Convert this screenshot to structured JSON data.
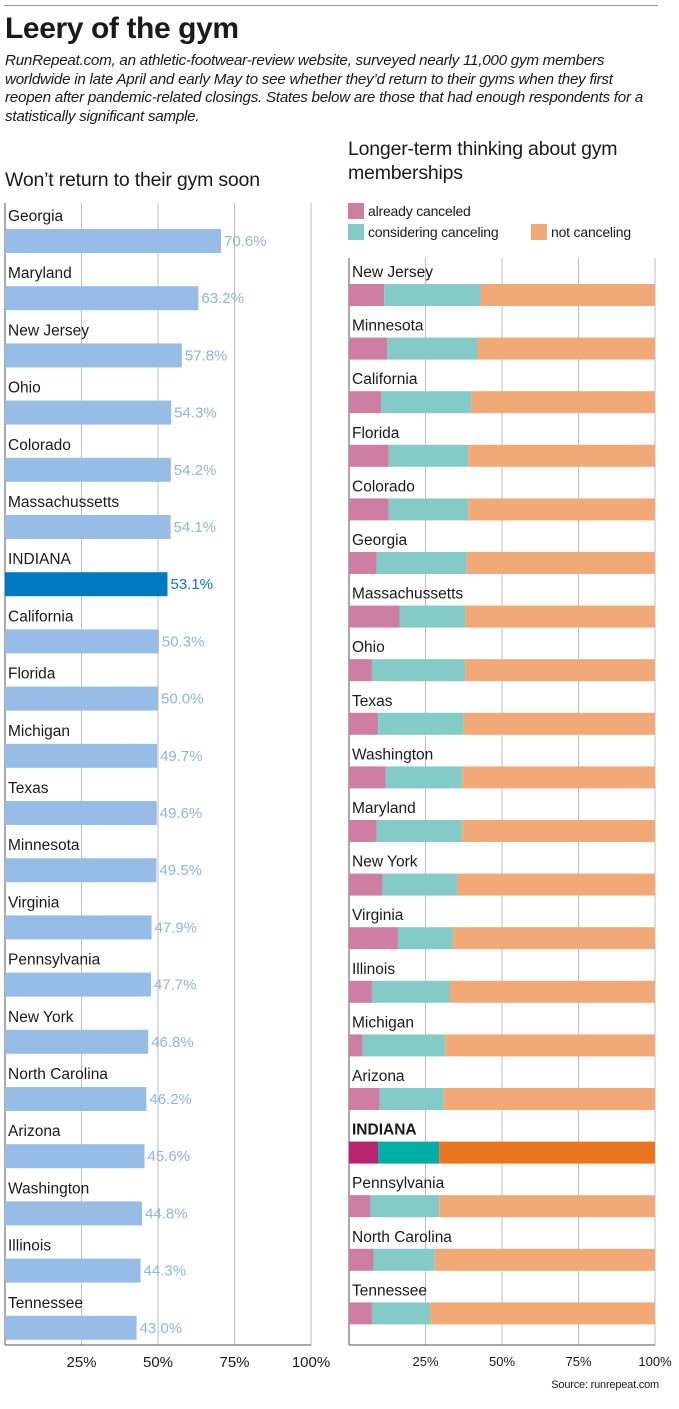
{
  "header": {
    "title": "Leery of the gym",
    "intro": "RunRepeat.com, an athletic-footwear-review website, surveyed nearly 11,000 gym members worldwide in late April and early May to see whether they’d return to their gyms when they first reopen after pandemic-related closings. States below are those that had enough respondents for a statistically significant sample."
  },
  "source": "Source: runrepeat.com",
  "colors": {
    "left_bar": "#97bde7",
    "left_bar_highlight": "#0079c1",
    "already_canceled": "#cf7ea3",
    "considering_canceling": "#84cbc7",
    "not_canceling": "#f2a978",
    "already_canceled_highlight": "#b8246f",
    "considering_canceling_highlight": "#00aea6",
    "not_canceling_highlight": "#e9761f"
  },
  "chart_data": [
    {
      "type": "bar",
      "orientation": "horizontal",
      "title": "Won’t return to their gym soon",
      "categories": [
        "Georgia",
        "Maryland",
        "New Jersey",
        "Ohio",
        "Colorado",
        "Massachussetts",
        "INDIANA",
        "California",
        "Florida",
        "Michigan",
        "Texas",
        "Minnesota",
        "Virginia",
        "Pennsylvania",
        "New York",
        "North Carolina",
        "Arizona",
        "Washington",
        "Illinois",
        "Tennessee"
      ],
      "values": [
        70.6,
        63.2,
        57.8,
        54.3,
        54.2,
        54.1,
        53.1,
        50.3,
        50.0,
        49.7,
        49.6,
        49.5,
        47.9,
        47.7,
        46.8,
        46.2,
        45.6,
        44.8,
        44.3,
        43.0
      ],
      "value_labels": [
        "70.6%",
        "63.2%",
        "57.8%",
        "54.3%",
        "54.2%",
        "54.1%",
        "53.1%",
        "50.3%",
        "50.0%",
        "49.7%",
        "49.6%",
        "49.5%",
        "47.9%",
        "47.7%",
        "46.8%",
        "46.2%",
        "45.6%",
        "44.8%",
        "44.3%",
        "43.0%"
      ],
      "highlight": "INDIANA",
      "xlim": [
        0,
        100
      ],
      "xticks": [
        25,
        50,
        75,
        100
      ],
      "xtick_labels": [
        "25%",
        "50%",
        "75%",
        "100%"
      ],
      "grid": true
    },
    {
      "type": "bar",
      "orientation": "horizontal",
      "stacked": true,
      "title": "Longer-term thinking about gym memberships",
      "legend_position": "top",
      "categories": [
        "New Jersey",
        "Minnesota",
        "California",
        "Florida",
        "Colorado",
        "Georgia",
        "Massachussetts",
        "Ohio",
        "Texas",
        "Washington",
        "Maryland",
        "New York",
        "Virginia",
        "Illinois",
        "Michigan",
        "Arizona",
        "INDIANA",
        "Pennsylvania",
        "North Carolina",
        "Tennessee"
      ],
      "series": [
        {
          "name": "already canceled",
          "values": [
            11.5,
            12.5,
            10.5,
            13,
            13,
            9,
            16.5,
            7.5,
            9.5,
            12,
            9,
            11,
            16,
            7.5,
            4.5,
            10,
            9.5,
            7,
            8,
            7.5
          ]
        },
        {
          "name": "considering canceling",
          "values": [
            31.5,
            29.5,
            29.5,
            26,
            26,
            29.5,
            21.5,
            30.5,
            28,
            25,
            28,
            24.5,
            18,
            25.5,
            27,
            21,
            20,
            22.5,
            20,
            19
          ]
        },
        {
          "name": "not canceling",
          "values": [
            57,
            58,
            60,
            61,
            61,
            61.5,
            62,
            62,
            62.5,
            63,
            63,
            64.5,
            66,
            67,
            68.5,
            69,
            70.5,
            70.5,
            72,
            73.5
          ]
        }
      ],
      "highlight": "INDIANA",
      "xlim": [
        0,
        100
      ],
      "xticks": [
        25,
        50,
        75,
        100
      ],
      "xtick_labels": [
        "25%",
        "50%",
        "75%",
        "100%"
      ],
      "grid": true
    }
  ]
}
